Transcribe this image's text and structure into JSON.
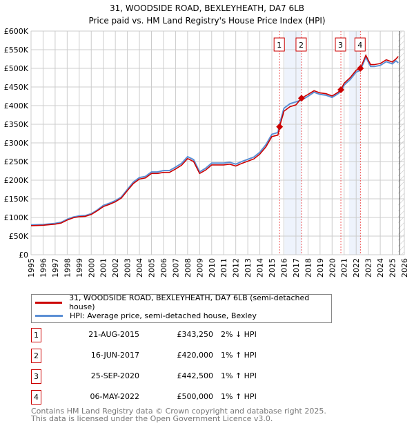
{
  "chart_data": {
    "type": "line",
    "title": "31, WOODSIDE ROAD, BEXLEYHEATH, DA7 6LB",
    "subtitle": "Price paid vs. HM Land Registry's House Price Index (HPI)",
    "xlim": [
      1995,
      2026
    ],
    "ylim": [
      0,
      600000
    ],
    "x_ticks": [
      "1995",
      "1996",
      "1997",
      "1998",
      "1999",
      "2000",
      "2001",
      "2002",
      "2003",
      "2004",
      "2005",
      "2006",
      "2007",
      "2008",
      "2009",
      "2010",
      "2011",
      "2012",
      "2013",
      "2014",
      "2015",
      "2016",
      "2017",
      "2018",
      "2019",
      "2020",
      "2021",
      "2022",
      "2023",
      "2024",
      "2025",
      "2026"
    ],
    "y_ticks": [
      {
        "v": 0,
        "l": "£0"
      },
      {
        "v": 50000,
        "l": "£50K"
      },
      {
        "v": 100000,
        "l": "£100K"
      },
      {
        "v": 150000,
        "l": "£150K"
      },
      {
        "v": 200000,
        "l": "£200K"
      },
      {
        "v": 250000,
        "l": "£250K"
      },
      {
        "v": 300000,
        "l": "£300K"
      },
      {
        "v": 350000,
        "l": "£350K"
      },
      {
        "v": 400000,
        "l": "£400K"
      },
      {
        "v": 450000,
        "l": "£450K"
      },
      {
        "v": 500000,
        "l": "£500K"
      },
      {
        "v": 550000,
        "l": "£550K"
      },
      {
        "v": 600000,
        "l": "£600K"
      }
    ],
    "grid": true,
    "x": [
      1995,
      1996,
      1997,
      1997.5,
      1998,
      1998.5,
      1999,
      1999.5,
      2000,
      2000.5,
      2001,
      2001.5,
      2002,
      2002.5,
      2003,
      2003.5,
      2004,
      2004.5,
      2005,
      2005.5,
      2006,
      2006.5,
      2007,
      2007.5,
      2008,
      2008.5,
      2009,
      2009.5,
      2010,
      2010.5,
      2011,
      2011.5,
      2012,
      2012.5,
      2013,
      2013.5,
      2014,
      2014.5,
      2015,
      2015.5,
      2015.64,
      2016,
      2016.5,
      2017,
      2017.45,
      2018,
      2018.5,
      2019,
      2019.5,
      2020,
      2020.5,
      2020.73,
      2021,
      2021.5,
      2022,
      2022.35,
      2022.8,
      2023.2,
      2023.5,
      2024,
      2024.5,
      2025,
      2025.3,
      2025.5
    ],
    "series": [
      {
        "name": "31, WOODSIDE ROAD, BEXLEYHEATH, DA7 6LB (semi-detached house)",
        "color": "#cc0000",
        "values": [
          78000,
          79000,
          82000,
          85000,
          93000,
          99000,
          102000,
          103000,
          108000,
          118000,
          129000,
          135000,
          142000,
          152000,
          172000,
          191000,
          203000,
          206000,
          218000,
          218000,
          221000,
          221000,
          230000,
          240000,
          258000,
          250000,
          218000,
          227000,
          241000,
          241000,
          241000,
          243000,
          238000,
          245000,
          251000,
          257000,
          270000,
          289000,
          317000,
          321000,
          343250,
          385000,
          397000,
          402000,
          420000,
          430000,
          440000,
          434000,
          432000,
          426000,
          436000,
          442500,
          460000,
          475000,
          495000,
          500000,
          535000,
          510000,
          510000,
          513000,
          523000,
          517000,
          525000,
          532000
        ]
      },
      {
        "name": "HPI: Average price, semi-detached house, Bexley",
        "color": "#5b8fd4",
        "values": [
          80000,
          81000,
          84000,
          87000,
          95000,
          101000,
          104000,
          105000,
          110000,
          120000,
          132000,
          138000,
          145000,
          155000,
          175000,
          195000,
          207000,
          210000,
          222000,
          222000,
          226000,
          226000,
          235000,
          245000,
          263000,
          255000,
          222000,
          232000,
          246000,
          246000,
          246000,
          248000,
          243000,
          250000,
          256000,
          262000,
          275000,
          295000,
          323000,
          328000,
          350000,
          393000,
          405000,
          410000,
          415000,
          425000,
          436000,
          430000,
          428000,
          422000,
          432000,
          438000,
          455000,
          470000,
          490000,
          495000,
          530000,
          505000,
          505000,
          508000,
          518000,
          512000,
          520000,
          515000
        ]
      }
    ],
    "shaded_ranges": [
      [
        2016.05,
        2017.45
      ],
      [
        2021.4,
        2022.35
      ]
    ],
    "forecast_from": 2025.5,
    "sales": [
      {
        "n": "1",
        "x": 2015.64,
        "y": 343250,
        "date": "21-AUG-2015",
        "price": "£343,250",
        "hpi": "2% ↓ HPI"
      },
      {
        "n": "2",
        "x": 2017.46,
        "y": 420000,
        "date": "16-JUN-2017",
        "price": "£420,000",
        "hpi": "1% ↑ HPI"
      },
      {
        "n": "3",
        "x": 2020.73,
        "y": 442500,
        "date": "25-SEP-2020",
        "price": "£442,500",
        "hpi": "1% ↑ HPI"
      },
      {
        "n": "4",
        "x": 2022.35,
        "y": 500000,
        "date": "06-MAY-2022",
        "price": "£500,000",
        "hpi": "1% ↑ HPI"
      }
    ]
  },
  "footer": {
    "line1": "Contains HM Land Registry data © Crown copyright and database right 2025.",
    "line2": "This data is licensed under the Open Government Licence v3.0."
  }
}
